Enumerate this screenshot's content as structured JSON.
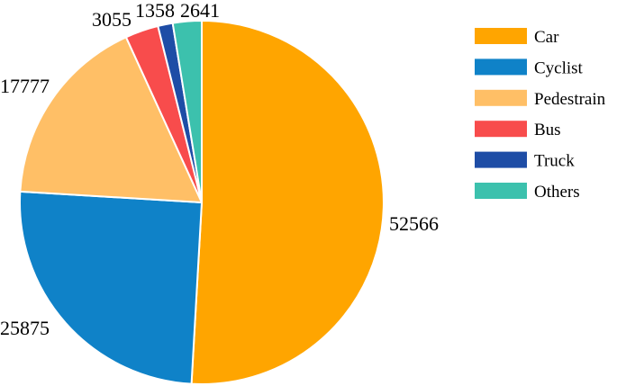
{
  "chart_data": {
    "type": "pie",
    "title": "",
    "categories": [
      "Car",
      "Cyclist",
      "Pedestrain",
      "Bus",
      "Truck",
      "Others"
    ],
    "values": [
      52566,
      25875,
      17777,
      3055,
      1358,
      2641
    ],
    "value_labels": [
      "52566",
      "25875",
      "17777",
      "3055",
      "1358",
      "2641"
    ],
    "colors": [
      "#FFA500",
      "#0F82C8",
      "#FFBF66",
      "#F84C4C",
      "#1E4DA6",
      "#3CC1AD"
    ],
    "start_angle": "12 o'clock",
    "direction": "clockwise",
    "legend": {
      "placement": "right",
      "entries": [
        "Car",
        "Cyclist",
        "Pedestrain",
        "Bus",
        "Truck",
        "Others"
      ]
    }
  }
}
